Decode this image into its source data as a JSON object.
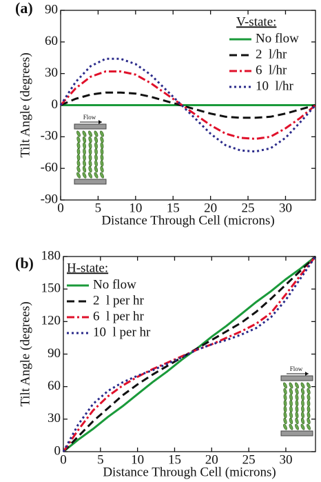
{
  "chart_data": [
    {
      "type": "line",
      "label": "(a)",
      "xlabel": "Distance Through Cell (microns)",
      "ylabel": "Tilt Angle (degrees)",
      "legend_title": "V-state:",
      "legend": "upper right",
      "inset_label": "Flow",
      "x": [
        0,
        2,
        4,
        6,
        8,
        10,
        12,
        14,
        16,
        18,
        20,
        22,
        24,
        26,
        28,
        30,
        32,
        34
      ],
      "series": [
        {
          "name": "No flow",
          "color": "#1a9a3a",
          "dash": "solid",
          "values": [
            0,
            0,
            0,
            0,
            0,
            0,
            0,
            0,
            0,
            0,
            0,
            0,
            0,
            0,
            0,
            0,
            0,
            0
          ]
        },
        {
          "name": "2  l/hr",
          "color": "#111111",
          "dash": "dashed",
          "values": [
            0,
            6,
            10,
            12,
            12,
            11,
            8,
            4,
            0,
            -4,
            -8,
            -11,
            -12,
            -12,
            -11,
            -8,
            -4,
            0
          ]
        },
        {
          "name": "6  l/hr",
          "color": "#e0102a",
          "dash": "dashdot",
          "values": [
            0,
            16,
            27,
            32,
            32,
            29,
            21,
            11,
            1,
            -9,
            -19,
            -27,
            -31,
            -32,
            -30,
            -22,
            -12,
            0
          ]
        },
        {
          "name": "10  l/hr",
          "color": "#2a2a8a",
          "dash": "dotted",
          "values": [
            0,
            22,
            37,
            44,
            44,
            39,
            29,
            15,
            1,
            -13,
            -27,
            -38,
            -43,
            -44,
            -41,
            -31,
            -16,
            0
          ]
        }
      ],
      "xlim": [
        0,
        34
      ],
      "xticks": [
        0,
        5,
        10,
        15,
        20,
        25,
        30
      ],
      "ylim": [
        -90,
        90
      ],
      "yticks": [
        -90,
        -60,
        -30,
        0,
        30,
        60,
        90
      ]
    },
    {
      "type": "line",
      "label": "(b)",
      "xlabel": "Distance Through Cell (microns)",
      "ylabel": "Tilt Angle (degrees)",
      "legend_title": "H-state:",
      "legend": "upper left",
      "inset_label": "Flow",
      "x": [
        0,
        2,
        4,
        6,
        8,
        10,
        12,
        14,
        16,
        18,
        20,
        22,
        24,
        26,
        28,
        30,
        32,
        34
      ],
      "series": [
        {
          "name": "No flow",
          "color": "#1a9a3a",
          "dash": "solid",
          "values": [
            0,
            11,
            21,
            32,
            42,
            53,
            64,
            74,
            85,
            95,
            106,
            116,
            127,
            138,
            148,
            159,
            169,
            180
          ]
        },
        {
          "name": "2  l per hr",
          "color": "#111111",
          "dash": "dashed",
          "values": [
            0,
            14,
            28,
            40,
            52,
            62,
            71,
            79,
            87,
            95,
            103,
            111,
            119,
            129,
            141,
            154,
            167,
            180
          ]
        },
        {
          "name": "6  l per hr",
          "color": "#e0102a",
          "dash": "dashdot",
          "values": [
            0,
            20,
            38,
            51,
            61,
            69,
            76,
            82,
            88,
            94,
            99,
            105,
            111,
            118,
            128,
            145,
            163,
            180
          ]
        },
        {
          "name": "10  l per hr",
          "color": "#2a2a8a",
          "dash": "dotted",
          "values": [
            0,
            25,
            44,
            56,
            64,
            70,
            75,
            81,
            87,
            94,
            99,
            103,
            108,
            114,
            124,
            140,
            160,
            180
          ]
        }
      ],
      "xlim": [
        0,
        34
      ],
      "xticks": [
        0,
        5,
        10,
        15,
        20,
        25,
        30
      ],
      "ylim": [
        0,
        180
      ],
      "yticks": [
        0,
        30,
        60,
        90,
        120,
        150,
        180
      ]
    }
  ]
}
